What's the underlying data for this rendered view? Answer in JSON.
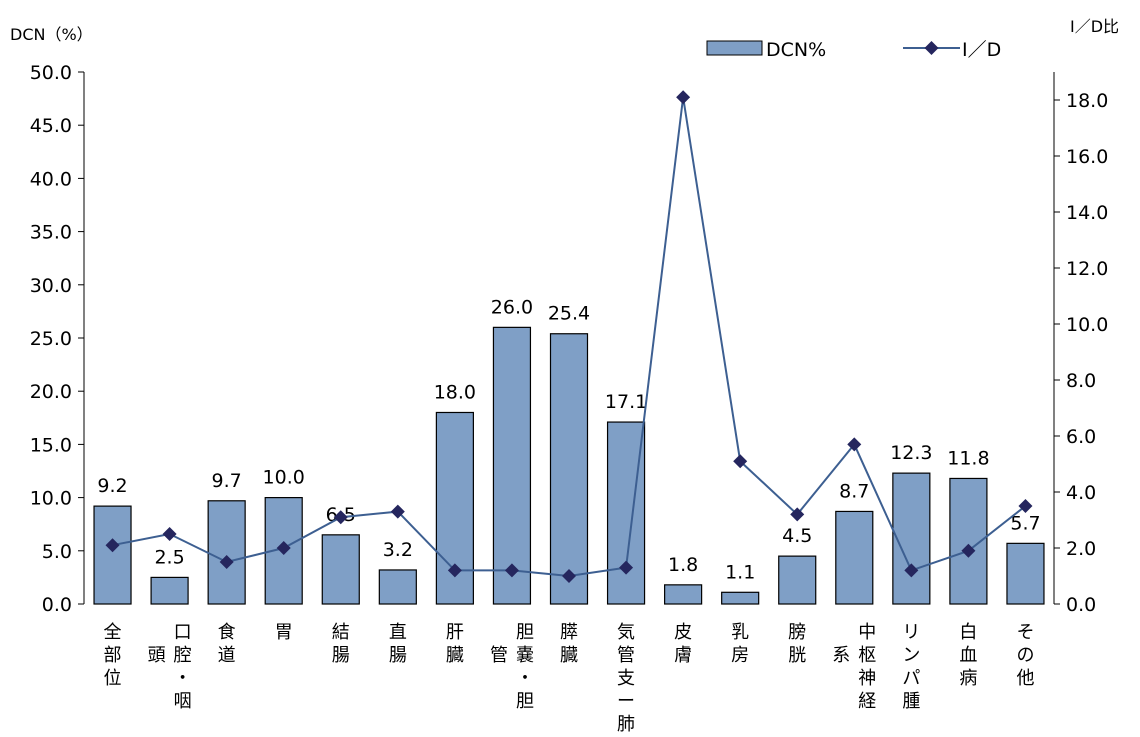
{
  "chart_data": {
    "type": "bar",
    "left_axis_title": "DCN（%）",
    "right_axis_title": "I／D比",
    "categories": [
      {
        "name": "全部位",
        "lines": [
          "全部位"
        ]
      },
      {
        "name": "口腔・咽頭",
        "lines": [
          "口腔・咽",
          "頭"
        ]
      },
      {
        "name": "食道",
        "lines": [
          "食道"
        ]
      },
      {
        "name": "胃",
        "lines": [
          "胃"
        ]
      },
      {
        "name": "結腸",
        "lines": [
          "結腸"
        ]
      },
      {
        "name": "直腸",
        "lines": [
          "直腸"
        ]
      },
      {
        "name": "肝臓",
        "lines": [
          "肝臓"
        ]
      },
      {
        "name": "胆嚢・胆管",
        "lines": [
          "胆嚢・胆",
          "管"
        ]
      },
      {
        "name": "膵臓",
        "lines": [
          "膵臓"
        ]
      },
      {
        "name": "気管支ー肺",
        "lines": [
          "気管支ー肺"
        ]
      },
      {
        "name": "皮膚",
        "lines": [
          "皮膚"
        ]
      },
      {
        "name": "乳房",
        "lines": [
          "乳房"
        ]
      },
      {
        "name": "膀胱",
        "lines": [
          "膀胱"
        ]
      },
      {
        "name": "中枢神経系",
        "lines": [
          "中枢神経",
          "系"
        ]
      },
      {
        "name": "リンパ腫",
        "lines": [
          "リンパ腫"
        ]
      },
      {
        "name": "白血病",
        "lines": [
          "白血病"
        ]
      },
      {
        "name": "その他",
        "lines": [
          "その他"
        ]
      }
    ],
    "series": [
      {
        "name": "DCN%",
        "type": "bar",
        "axis": "left",
        "color": "#7f9fc6",
        "values": [
          9.2,
          2.5,
          9.7,
          10.0,
          6.5,
          3.2,
          18.0,
          26.0,
          25.4,
          17.1,
          1.8,
          1.1,
          4.5,
          8.7,
          12.3,
          11.8,
          5.7
        ],
        "labels": [
          "9.2",
          "2.5",
          "9.7",
          "10.0",
          "6.5",
          "3.2",
          "18.0",
          "26.0",
          "25.4",
          "17.1",
          "1.8",
          "1.1",
          "4.5",
          "8.7",
          "12.3",
          "11.8",
          "5.7"
        ]
      },
      {
        "name": "I／D",
        "type": "line",
        "axis": "right",
        "color": "#3d5f91",
        "marker_color": "#25265e",
        "values": [
          2.1,
          2.5,
          1.5,
          2.0,
          3.1,
          3.3,
          1.2,
          1.2,
          1.0,
          1.3,
          18.1,
          5.1,
          3.2,
          5.7,
          1.2,
          1.9,
          3.5
        ]
      }
    ],
    "y_left": {
      "min": 0,
      "max": 50,
      "step": 5,
      "ticks": [
        "0.0",
        "5.0",
        "10.0",
        "15.0",
        "20.0",
        "25.0",
        "30.0",
        "35.0",
        "40.0",
        "45.0",
        "50.0"
      ]
    },
    "y_right": {
      "min": 0,
      "max": 19,
      "step": 2,
      "ticks": [
        "0.0",
        "2.0",
        "4.0",
        "6.0",
        "8.0",
        "10.0",
        "12.0",
        "14.0",
        "16.0",
        "18.0"
      ]
    },
    "legend": {
      "position": "top-right",
      "items": [
        "DCN%",
        "I／D"
      ]
    },
    "grid": false
  }
}
